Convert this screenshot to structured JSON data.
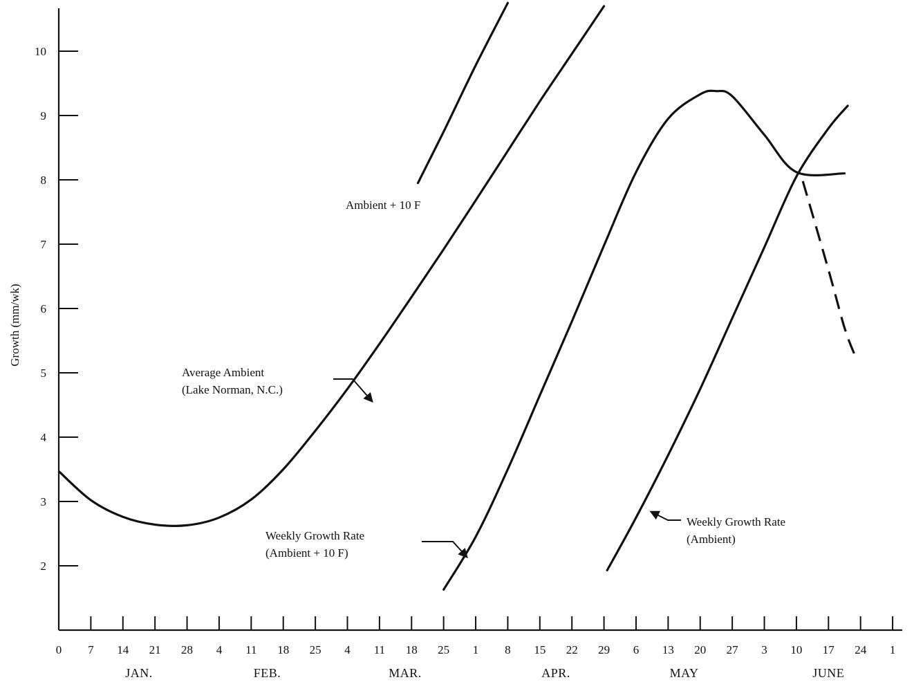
{
  "chart_data": {
    "type": "line",
    "ylabel": "Growth (mm/wk)",
    "xlabel": "",
    "ylim": [
      1,
      10.5
    ],
    "xlim": [
      0,
      26.3
    ],
    "yticks": [
      2,
      3,
      4,
      5,
      6,
      7,
      8,
      9,
      10
    ],
    "xtick_labels": [
      "0",
      "7",
      "14",
      "21",
      "28",
      "4",
      "11",
      "18",
      "25",
      "4",
      "11",
      "18",
      "25",
      "1",
      "8",
      "15",
      "22",
      "29",
      "6",
      "13",
      "20",
      "27",
      "3",
      "10",
      "17",
      "24",
      "1"
    ],
    "month_labels": [
      {
        "label": "JAN.",
        "x": 2.5
      },
      {
        "label": "FEB.",
        "x": 6.5
      },
      {
        "label": "MAR.",
        "x": 10.8
      },
      {
        "label": "APR.",
        "x": 15.5
      },
      {
        "label": "MAY",
        "x": 19.5
      },
      {
        "label": "JUNE",
        "x": 24.0
      }
    ],
    "series": [
      {
        "name": "Average Ambient (Lake Norman, N.C.)",
        "style": "solid",
        "points": [
          [
            0,
            3.47
          ],
          [
            1,
            3.02
          ],
          [
            2,
            2.76
          ],
          [
            3,
            2.64
          ],
          [
            4,
            2.63
          ],
          [
            5,
            2.75
          ],
          [
            6,
            3.03
          ],
          [
            7,
            3.5
          ],
          [
            8,
            4.1
          ],
          [
            9,
            4.75
          ],
          [
            10,
            5.45
          ],
          [
            11,
            6.18
          ],
          [
            12,
            6.92
          ],
          [
            13,
            7.68
          ],
          [
            14,
            8.45
          ],
          [
            15,
            9.22
          ],
          [
            16,
            9.96
          ],
          [
            17,
            10.7
          ]
        ]
      },
      {
        "name": "Ambient + 10 F",
        "style": "solid",
        "points": [
          [
            11.2,
            7.95
          ],
          [
            12.0,
            8.75
          ],
          [
            13.0,
            9.78
          ],
          [
            14.0,
            10.75
          ]
        ]
      },
      {
        "name": "Weekly Growth Rate (Ambient + 10 F)",
        "style": "solid",
        "points": [
          [
            12.0,
            1.63
          ],
          [
            13.0,
            2.45
          ],
          [
            14.0,
            3.5
          ],
          [
            15.0,
            4.65
          ],
          [
            16.0,
            5.8
          ],
          [
            17.0,
            6.98
          ],
          [
            18.0,
            8.12
          ],
          [
            19.0,
            8.95
          ],
          [
            20.0,
            9.33
          ],
          [
            20.5,
            9.38
          ],
          [
            21.0,
            9.3
          ],
          [
            22.0,
            8.7
          ],
          [
            23.0,
            8.12
          ],
          [
            24.5,
            8.1
          ]
        ]
      },
      {
        "name": "Weekly Growth Rate (Ambient)",
        "style": "solid",
        "points": [
          [
            17.1,
            1.93
          ],
          [
            18.0,
            2.75
          ],
          [
            19.0,
            3.72
          ],
          [
            20.0,
            4.75
          ],
          [
            21.0,
            5.85
          ],
          [
            22.0,
            6.95
          ],
          [
            23.0,
            8.05
          ],
          [
            24.0,
            8.8
          ],
          [
            24.6,
            9.15
          ]
        ]
      },
      {
        "name": "Ambient decline (dashed)",
        "style": "dashed",
        "points": [
          [
            23.2,
            7.98
          ],
          [
            24.0,
            6.6
          ],
          [
            24.5,
            5.7
          ],
          [
            24.8,
            5.3
          ]
        ]
      }
    ],
    "annotations": [
      {
        "id": "ambient10",
        "lines": [
          "Ambient + 10  F"
        ]
      },
      {
        "id": "avg",
        "lines": [
          "Average Ambient",
          "(Lake Norman, N.C.)"
        ]
      },
      {
        "id": "wgr10",
        "lines": [
          "Weekly Growth Rate",
          "(Ambient + 10   F)"
        ]
      },
      {
        "id": "wgr",
        "lines": [
          "Weekly Growth Rate",
          "(Ambient)"
        ]
      }
    ],
    "grid": false,
    "legend": "none"
  }
}
